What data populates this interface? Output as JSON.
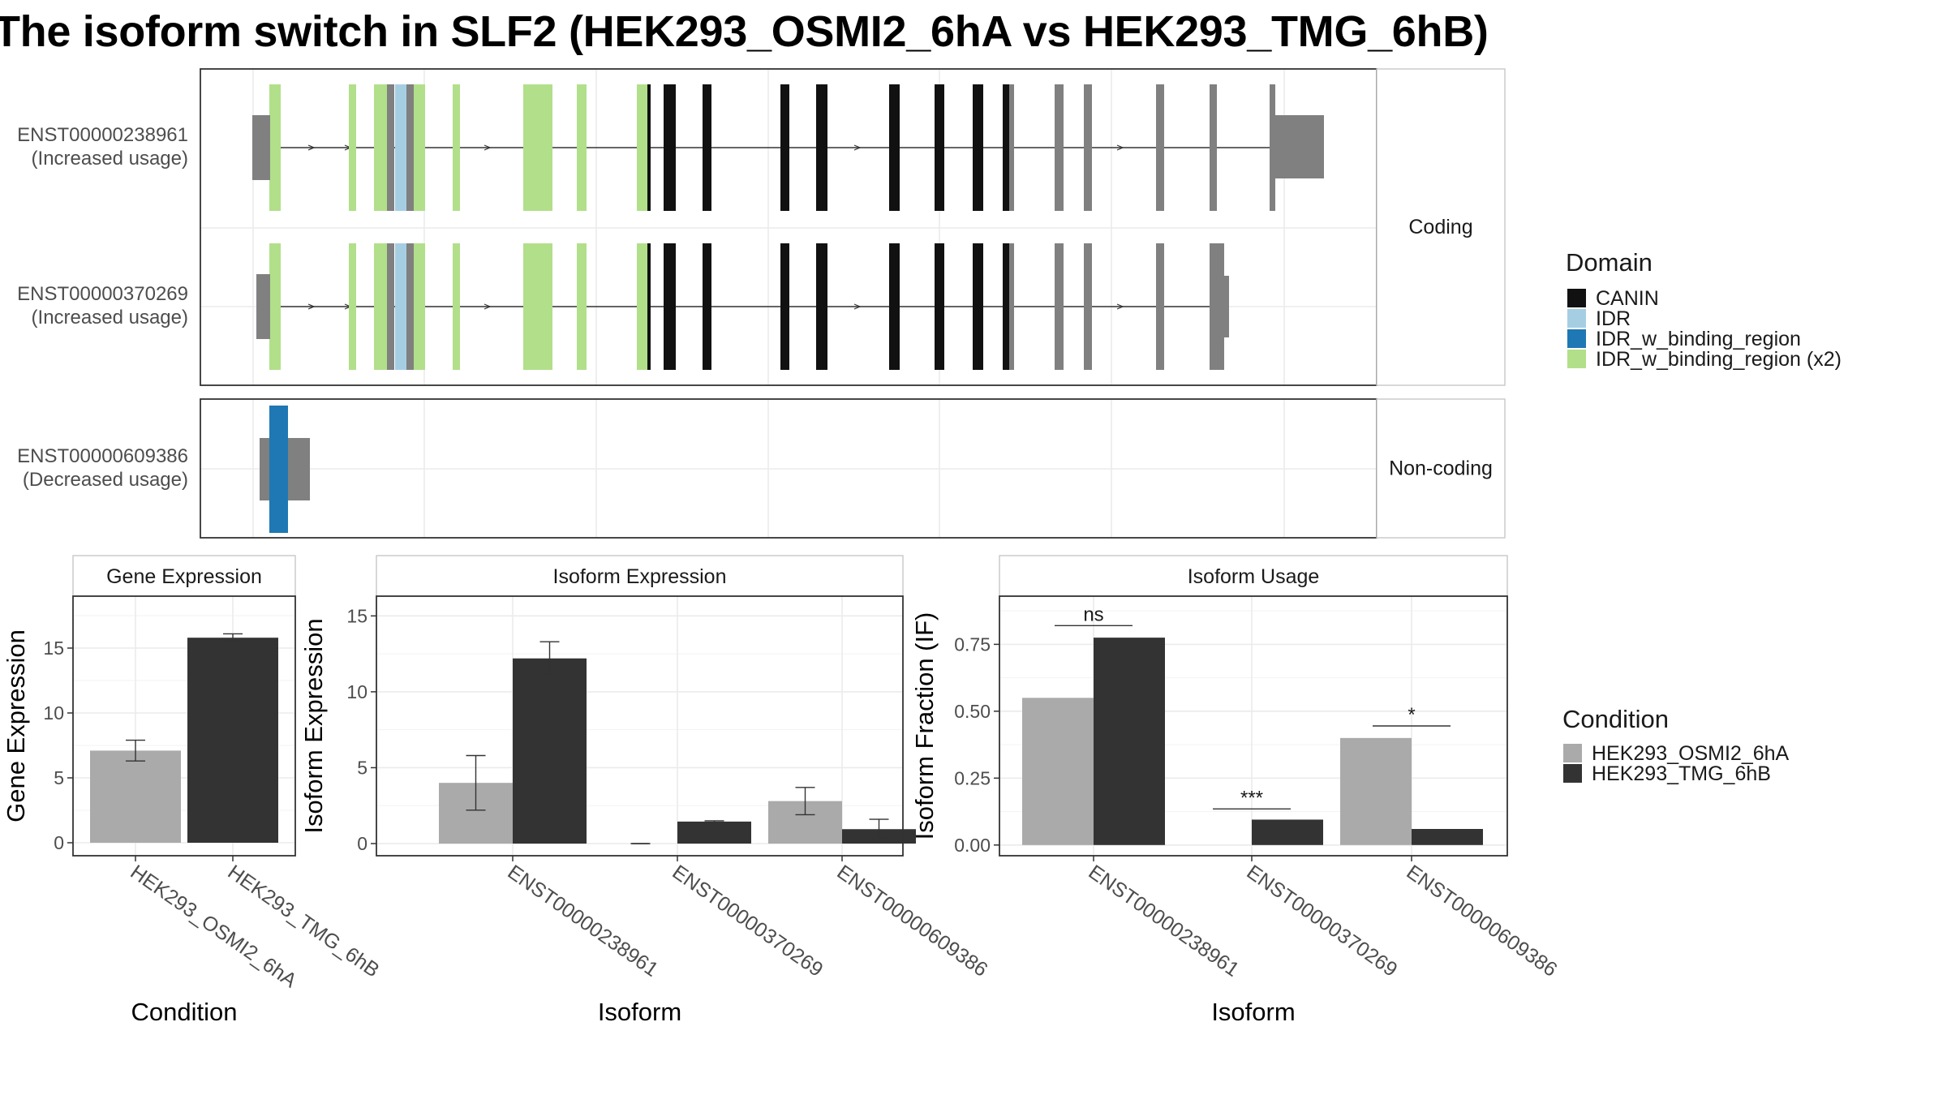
{
  "title": "The isoform switch in SLF2 (HEK293_OSMI2_6hA vs HEK293_TMG_6hB)",
  "colors": {
    "CANIN": "#111111",
    "IDR": "#a6cee3",
    "IDR_w_binding_region": "#1f78b4",
    "IDR_w_binding_region (x2)": "#b2df8a",
    "exon": "#808080",
    "condA": "#aaaaaa",
    "condB": "#333333"
  },
  "chart_data": [
    {
      "type": "gene-structure",
      "legend_title": "Domain",
      "legend_placement": "right",
      "legend": [
        "CANIN",
        "IDR",
        "IDR_w_binding_region",
        "IDR_w_binding_region (x2)"
      ],
      "panels": [
        {
          "label": "Coding",
          "transcripts": [
            {
              "id": "ENST00000238961",
              "usage": "(Increased usage)"
            },
            {
              "id": "ENST00000370269",
              "usage": "(Increased usage)"
            }
          ]
        },
        {
          "label": "Non-coding",
          "transcripts": [
            {
              "id": "ENST00000609386",
              "usage": "(Decreased usage)"
            }
          ]
        }
      ]
    },
    {
      "type": "bar",
      "panel_title": "Gene Expression",
      "xlabel": "Condition",
      "ylabel": "Gene Expression",
      "ylim": [
        -1,
        19
      ],
      "yticks": [
        0,
        5,
        10,
        15
      ],
      "categories": [
        "HEK293_OSMI2_6hA",
        "HEK293_TMG_6hB"
      ],
      "values": [
        7.1,
        15.8
      ],
      "errors": [
        [
          6.3,
          7.9
        ],
        [
          15.5,
          16.1
        ]
      ]
    },
    {
      "type": "bar",
      "panel_title": "Isoform Expression",
      "xlabel": "Isoform",
      "ylabel": "Isoform Expression",
      "ylim": [
        -0.8,
        16.3
      ],
      "yticks": [
        0,
        5,
        10,
        15
      ],
      "categories": [
        "ENST00000238961",
        "ENST00000370269",
        "ENST00000609386"
      ],
      "series": [
        {
          "name": "HEK293_OSMI2_6hA",
          "values": [
            4.0,
            0.0,
            2.8
          ],
          "errors": [
            [
              2.2,
              5.8
            ],
            [
              0.0,
              0.0
            ],
            [
              1.9,
              3.7
            ]
          ]
        },
        {
          "name": "HEK293_TMG_6hB",
          "values": [
            12.2,
            1.45,
            0.95
          ],
          "errors": [
            [
              11.1,
              13.3
            ],
            [
              1.4,
              1.5
            ],
            [
              0.4,
              1.6
            ]
          ]
        }
      ]
    },
    {
      "type": "bar",
      "panel_title": "Isoform Usage",
      "xlabel": "Isoform",
      "ylabel": "Isoform Fraction (IF)",
      "ylim": [
        -0.04,
        0.93
      ],
      "yticks": [
        "0.00",
        "0.25",
        "0.50",
        "0.75"
      ],
      "categories": [
        "ENST00000238961",
        "ENST00000370269",
        "ENST00000609386"
      ],
      "series": [
        {
          "name": "HEK293_OSMI2_6hA",
          "values": [
            0.55,
            0.0,
            0.4
          ]
        },
        {
          "name": "HEK293_TMG_6hB",
          "values": [
            0.775,
            0.095,
            0.06
          ]
        }
      ],
      "annotations": [
        {
          "category": "ENST00000238961",
          "label": "ns",
          "y": 0.82
        },
        {
          "category": "ENST00000370269",
          "label": "***",
          "y": 0.135
        },
        {
          "category": "ENST00000609386",
          "label": "*",
          "y": 0.445
        }
      ],
      "legend_title": "Condition",
      "legend_placement": "right",
      "legend": [
        "HEK293_OSMI2_6hA",
        "HEK293_TMG_6hB"
      ]
    }
  ]
}
